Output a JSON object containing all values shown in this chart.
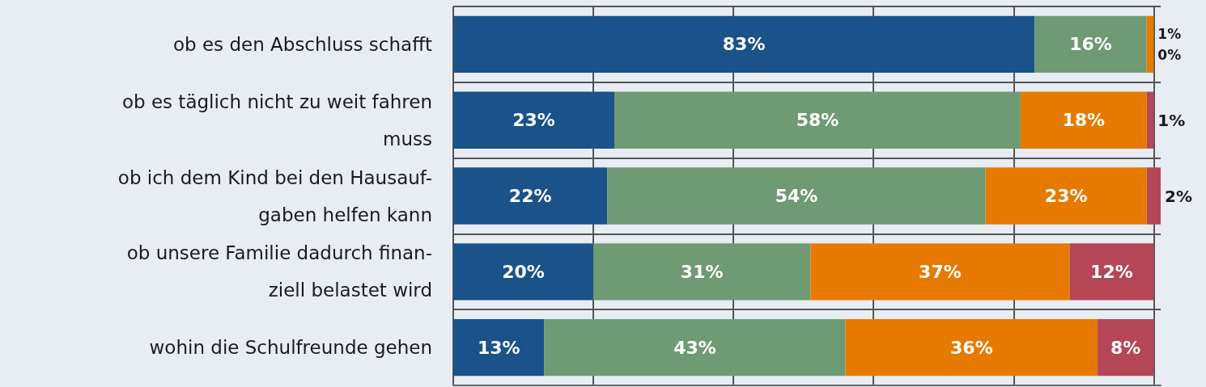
{
  "chart_data": {
    "type": "bar",
    "orientation": "horizontal",
    "stacked": true,
    "categories": [
      "ob es den Abschluss schafft",
      "ob es täglich nicht zu weit fahren\nmuss",
      "ob ich dem Kind bei den Hausauf-\ngaben helfen kann",
      "ob unsere Familie dadurch finan-\nziell belastet wird",
      "wohin die Schulfreunde gehen"
    ],
    "series": [
      {
        "color": "#1a5289",
        "values": [
          83,
          23,
          22,
          20,
          13
        ],
        "value_labels": [
          "83%",
          "23%",
          "22%",
          "20%",
          "13%"
        ]
      },
      {
        "color": "#6e9a74",
        "values": [
          16,
          58,
          54,
          31,
          43
        ],
        "value_labels": [
          "16%",
          "58%",
          "54%",
          "31%",
          "43%"
        ]
      },
      {
        "color": "#e67a00",
        "values": [
          1,
          18,
          23,
          37,
          36
        ],
        "value_labels": [
          "1%",
          "18%",
          "23%",
          "37%",
          "36%"
        ]
      },
      {
        "color": "#b54656",
        "values": [
          0,
          1,
          2,
          12,
          8
        ],
        "value_labels": [
          "0%",
          "1%",
          "2%",
          "12%",
          "8%"
        ]
      }
    ],
    "xlim": [
      0,
      101
    ],
    "xticks": [
      {
        "value": 0,
        "label": null
      },
      {
        "value": 20,
        "label": null
      },
      {
        "value": 40,
        "label": null
      },
      {
        "value": 60,
        "label": null
      },
      {
        "value": 80,
        "label": null
      },
      {
        "value": 100,
        "label": null
      }
    ],
    "tick_labels": "y",
    "grid": true
  }
}
